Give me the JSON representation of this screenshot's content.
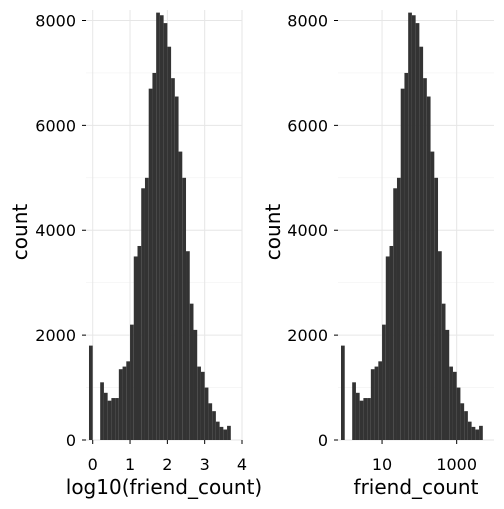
{
  "colors": {
    "bar": "#333333",
    "grid_major": "#e6e6e6",
    "grid_minor": "#f2f2f2",
    "background": "#ffffff",
    "text": "#000000"
  },
  "chart_data": [
    {
      "type": "bar",
      "xlabel": "log10(friend_count)",
      "ylabel": "count",
      "xscale": "linear",
      "xlim": [
        -0.18,
        4.0
      ],
      "ylim": [
        0,
        8200
      ],
      "xticks": [
        0,
        1,
        2,
        3,
        4
      ],
      "xtick_labels": [
        "0",
        "1",
        "2",
        "3",
        "4"
      ],
      "yticks": [
        0,
        2000,
        4000,
        6000,
        8000
      ],
      "ytick_labels": [
        "0",
        "2000",
        "4000",
        "6000",
        "8000"
      ],
      "grid": true,
      "bins": [
        {
          "x0": -0.1,
          "x1": 0.0,
          "count": 1800
        },
        {
          "x0": 0.1,
          "x1": 0.2,
          "count": 0
        },
        {
          "x0": 0.2,
          "x1": 0.3,
          "count": 1100
        },
        {
          "x0": 0.3,
          "x1": 0.4,
          "count": 900
        },
        {
          "x0": 0.4,
          "x1": 0.5,
          "count": 750
        },
        {
          "x0": 0.5,
          "x1": 0.6,
          "count": 800
        },
        {
          "x0": 0.6,
          "x1": 0.7,
          "count": 800
        },
        {
          "x0": 0.7,
          "x1": 0.8,
          "count": 1350
        },
        {
          "x0": 0.8,
          "x1": 0.9,
          "count": 1400
        },
        {
          "x0": 0.9,
          "x1": 1.0,
          "count": 1500
        },
        {
          "x0": 1.0,
          "x1": 1.1,
          "count": 2200
        },
        {
          "x0": 1.1,
          "x1": 1.2,
          "count": 3500
        },
        {
          "x0": 1.2,
          "x1": 1.3,
          "count": 3700
        },
        {
          "x0": 1.3,
          "x1": 1.4,
          "count": 4800
        },
        {
          "x0": 1.4,
          "x1": 1.5,
          "count": 5000
        },
        {
          "x0": 1.5,
          "x1": 1.6,
          "count": 6700
        },
        {
          "x0": 1.6,
          "x1": 1.7,
          "count": 7000
        },
        {
          "x0": 1.7,
          "x1": 1.8,
          "count": 8150
        },
        {
          "x0": 1.8,
          "x1": 1.9,
          "count": 8100
        },
        {
          "x0": 1.9,
          "x1": 2.0,
          "count": 7950
        },
        {
          "x0": 2.0,
          "x1": 2.1,
          "count": 7500
        },
        {
          "x0": 2.1,
          "x1": 2.2,
          "count": 6900
        },
        {
          "x0": 2.2,
          "x1": 2.3,
          "count": 6550
        },
        {
          "x0": 2.3,
          "x1": 2.4,
          "count": 5500
        },
        {
          "x0": 2.4,
          "x1": 2.5,
          "count": 5000
        },
        {
          "x0": 2.5,
          "x1": 2.6,
          "count": 3600
        },
        {
          "x0": 2.6,
          "x1": 2.7,
          "count": 2600
        },
        {
          "x0": 2.7,
          "x1": 2.8,
          "count": 2100
        },
        {
          "x0": 2.8,
          "x1": 2.9,
          "count": 1400
        },
        {
          "x0": 2.9,
          "x1": 3.0,
          "count": 1300
        },
        {
          "x0": 3.0,
          "x1": 3.1,
          "count": 1000
        },
        {
          "x0": 3.1,
          "x1": 3.2,
          "count": 700
        },
        {
          "x0": 3.2,
          "x1": 3.3,
          "count": 550
        },
        {
          "x0": 3.3,
          "x1": 3.4,
          "count": 350
        },
        {
          "x0": 3.4,
          "x1": 3.5,
          "count": 250
        },
        {
          "x0": 3.5,
          "x1": 3.6,
          "count": 200
        },
        {
          "x0": 3.6,
          "x1": 3.7,
          "count": 270
        }
      ]
    },
    {
      "type": "bar",
      "xlabel": "friend_count",
      "ylabel": "count",
      "xscale": "log10",
      "xlim": [
        0.66,
        10000
      ],
      "ylim": [
        0,
        8200
      ],
      "xticks": [
        10,
        1000
      ],
      "xtick_labels": [
        "10",
        "1000"
      ],
      "yticks": [
        0,
        2000,
        4000,
        6000,
        8000
      ],
      "ytick_labels": [
        "0",
        "2000",
        "4000",
        "6000",
        "8000"
      ],
      "grid": true,
      "bins": [
        {
          "x0": 0.794,
          "x1": 1.0,
          "count": 1800
        },
        {
          "x0": 1.259,
          "x1": 1.585,
          "count": 0
        },
        {
          "x0": 1.585,
          "x1": 1.995,
          "count": 1100
        },
        {
          "x0": 1.995,
          "x1": 2.512,
          "count": 900
        },
        {
          "x0": 2.512,
          "x1": 3.162,
          "count": 750
        },
        {
          "x0": 3.162,
          "x1": 3.981,
          "count": 800
        },
        {
          "x0": 3.981,
          "x1": 5.012,
          "count": 800
        },
        {
          "x0": 5.012,
          "x1": 6.31,
          "count": 1350
        },
        {
          "x0": 6.31,
          "x1": 7.943,
          "count": 1400
        },
        {
          "x0": 7.943,
          "x1": 10.0,
          "count": 1500
        },
        {
          "x0": 10.0,
          "x1": 12.59,
          "count": 2200
        },
        {
          "x0": 12.59,
          "x1": 15.85,
          "count": 3500
        },
        {
          "x0": 15.85,
          "x1": 19.95,
          "count": 3700
        },
        {
          "x0": 19.95,
          "x1": 25.12,
          "count": 4800
        },
        {
          "x0": 25.12,
          "x1": 31.62,
          "count": 5000
        },
        {
          "x0": 31.62,
          "x1": 39.81,
          "count": 6700
        },
        {
          "x0": 39.81,
          "x1": 50.12,
          "count": 7000
        },
        {
          "x0": 50.12,
          "x1": 63.1,
          "count": 8150
        },
        {
          "x0": 63.1,
          "x1": 79.43,
          "count": 8100
        },
        {
          "x0": 79.43,
          "x1": 100.0,
          "count": 7950
        },
        {
          "x0": 100.0,
          "x1": 125.9,
          "count": 7500
        },
        {
          "x0": 125.9,
          "x1": 158.5,
          "count": 6900
        },
        {
          "x0": 158.5,
          "x1": 199.5,
          "count": 6550
        },
        {
          "x0": 199.5,
          "x1": 251.2,
          "count": 5500
        },
        {
          "x0": 251.2,
          "x1": 316.2,
          "count": 5000
        },
        {
          "x0": 316.2,
          "x1": 398.1,
          "count": 3600
        },
        {
          "x0": 398.1,
          "x1": 501.2,
          "count": 2600
        },
        {
          "x0": 501.2,
          "x1": 631.0,
          "count": 2100
        },
        {
          "x0": 631.0,
          "x1": 794.3,
          "count": 1400
        },
        {
          "x0": 794.3,
          "x1": 1000.0,
          "count": 1300
        },
        {
          "x0": 1000.0,
          "x1": 1259.0,
          "count": 1000
        },
        {
          "x0": 1259.0,
          "x1": 1585.0,
          "count": 700
        },
        {
          "x0": 1585.0,
          "x1": 1995.0,
          "count": 550
        },
        {
          "x0": 1995.0,
          "x1": 2512.0,
          "count": 350
        },
        {
          "x0": 2512.0,
          "x1": 3162.0,
          "count": 250
        },
        {
          "x0": 3162.0,
          "x1": 3981.0,
          "count": 200
        },
        {
          "x0": 3981.0,
          "x1": 5012.0,
          "count": 270
        }
      ]
    }
  ]
}
